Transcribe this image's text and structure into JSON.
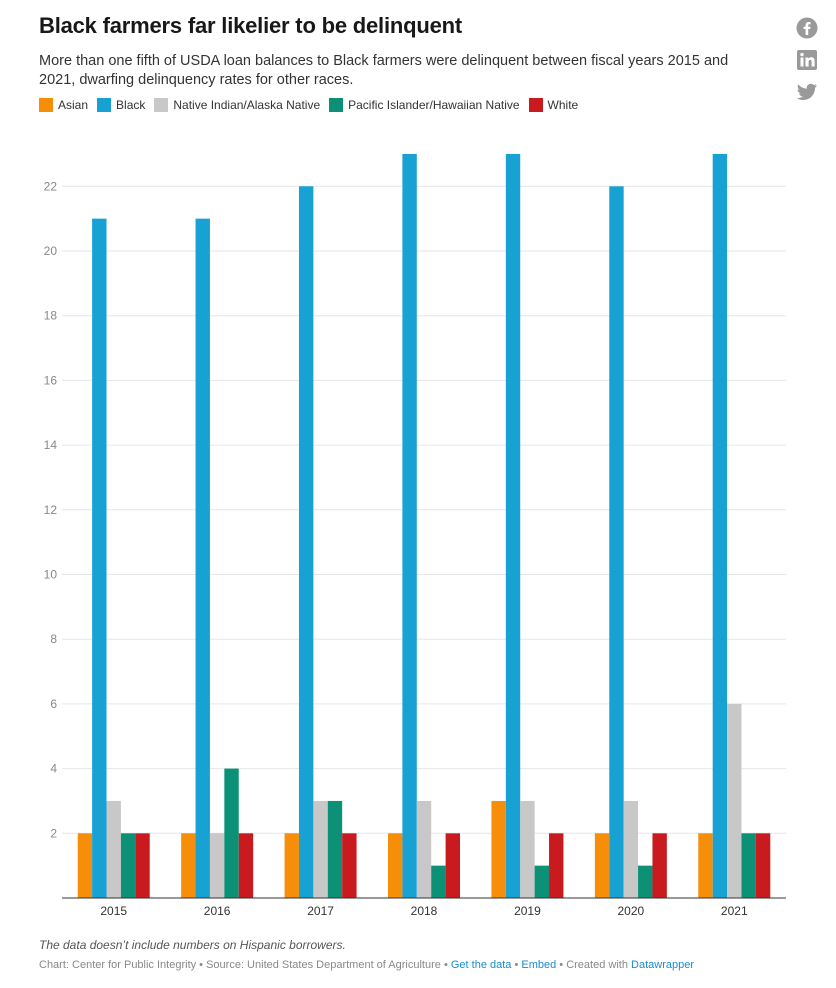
{
  "header": {
    "title": "Black farmers far likelier to be delinquent",
    "subtitle": "More than one fifth of USDA loan balances to Black farmers were delinquent between fiscal years 2015 and 2021, dwarfing delinquency rates for other races."
  },
  "share_icons": [
    "facebook-icon",
    "linkedin-icon",
    "twitter-icon"
  ],
  "chart_data": {
    "type": "bar",
    "categories": [
      "2015",
      "2016",
      "2017",
      "2018",
      "2019",
      "2020",
      "2021"
    ],
    "series": [
      {
        "name": "Asian",
        "color": "#f68e0a",
        "values": [
          2,
          2,
          2,
          2,
          3,
          2,
          2
        ]
      },
      {
        "name": "Black",
        "color": "#18a2d3",
        "values": [
          21,
          21,
          22,
          23,
          23,
          22,
          23
        ]
      },
      {
        "name": "Native Indian/Alaska Native",
        "color": "#c8c8c8",
        "values": [
          3,
          2,
          3,
          3,
          3,
          3,
          6
        ]
      },
      {
        "name": "Pacific Islander/Hawaiian Native",
        "color": "#0c9176",
        "values": [
          2,
          4,
          3,
          1,
          1,
          1,
          2
        ]
      },
      {
        "name": "White",
        "color": "#c91b1f",
        "values": [
          2,
          2,
          2,
          2,
          2,
          2,
          2
        ]
      }
    ],
    "y_ticks": [
      2,
      4,
      6,
      8,
      10,
      12,
      14,
      16,
      18,
      20,
      22
    ],
    "ylim": [
      0,
      23
    ],
    "grid": true,
    "legend_position": "top-left"
  },
  "footer": {
    "note": "The data doesn’t include numbers on Hispanic borrowers.",
    "chart_credit": "Chart: Center for Public Integrity",
    "separator": " • ",
    "source": "Source: United States Department of Agriculture",
    "get_data": "Get the data",
    "embed": "Embed",
    "created_with": "Created with",
    "datawrapper": "Datawrapper"
  }
}
